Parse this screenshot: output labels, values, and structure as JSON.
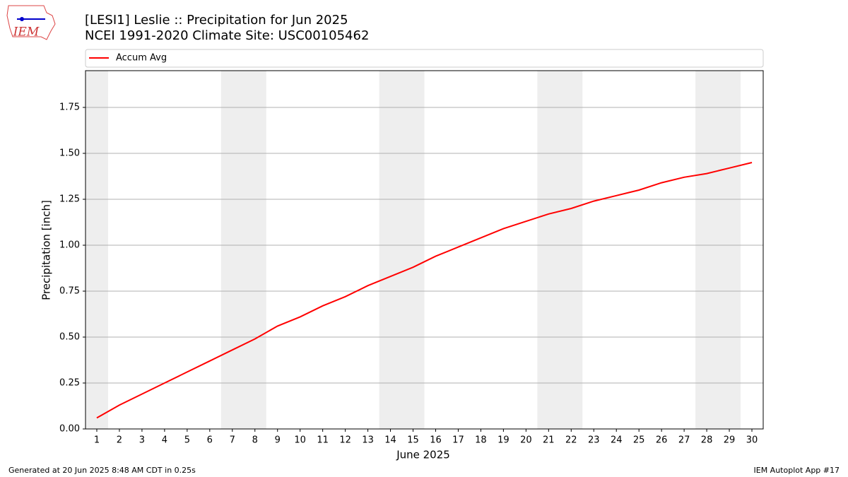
{
  "logo_text": "IEM",
  "footer_left": "Generated at 20 Jun 2025 8:48 AM CDT in 0.25s",
  "footer_right": "IEM Autoplot App #17",
  "chart_data": {
    "type": "line",
    "title": "[LESI1] Leslie :: Precipitation for Jun 2025",
    "subtitle": "NCEI 1991-2020 Climate Site: USC00105462",
    "x_label": "June 2025",
    "y_label": "Precipitation [inch]",
    "x": [
      1,
      2,
      3,
      4,
      5,
      6,
      7,
      8,
      9,
      10,
      11,
      12,
      13,
      14,
      15,
      16,
      17,
      18,
      19,
      20,
      21,
      22,
      23,
      24,
      25,
      26,
      27,
      28,
      29,
      30
    ],
    "series": [
      {
        "name": "Accum Avg",
        "color": "#ff0000",
        "values": [
          0.06,
          0.13,
          0.19,
          0.25,
          0.31,
          0.37,
          0.43,
          0.49,
          0.56,
          0.61,
          0.67,
          0.72,
          0.78,
          0.83,
          0.88,
          0.94,
          0.99,
          1.04,
          1.09,
          1.13,
          1.17,
          1.2,
          1.24,
          1.27,
          1.3,
          1.34,
          1.37,
          1.39,
          1.42,
          1.45
        ]
      }
    ],
    "xlim": [
      0.5,
      30.5
    ],
    "ylim": [
      0,
      1.95
    ],
    "xticks": [
      1,
      2,
      3,
      4,
      5,
      6,
      7,
      8,
      9,
      10,
      11,
      12,
      13,
      14,
      15,
      16,
      17,
      18,
      19,
      20,
      21,
      22,
      23,
      24,
      25,
      26,
      27,
      28,
      29,
      30
    ],
    "yticks": [
      {
        "value": 0,
        "label": "0.00"
      },
      {
        "value": 0.25,
        "label": "0.25"
      },
      {
        "value": 0.5,
        "label": "0.50"
      },
      {
        "value": 0.75,
        "label": "0.75"
      },
      {
        "value": 1,
        "label": "1.00"
      },
      {
        "value": 1.25,
        "label": "1.25"
      },
      {
        "value": 1.5,
        "label": "1.50"
      },
      {
        "value": 1.75,
        "label": "1.75"
      }
    ],
    "grid": true,
    "legend": "top",
    "weekend_spans": [
      [
        0.5,
        1.5
      ],
      [
        6.5,
        8.5
      ],
      [
        13.5,
        15.5
      ],
      [
        20.5,
        22.5
      ],
      [
        27.5,
        29.5
      ]
    ],
    "weekend_color": "#eeeeee"
  }
}
